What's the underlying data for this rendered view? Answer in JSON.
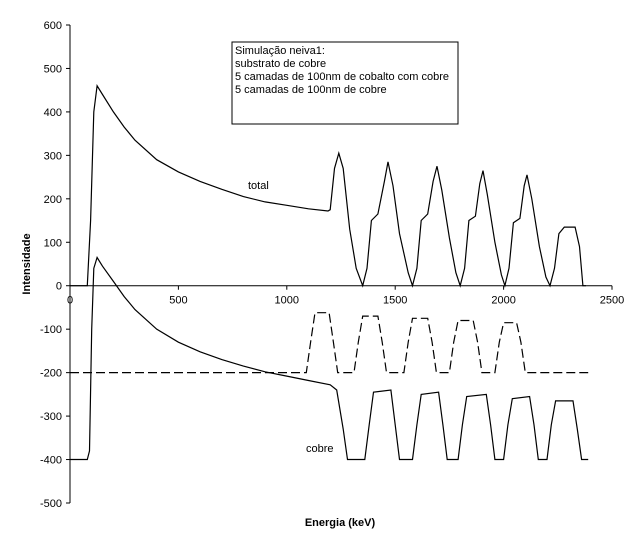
{
  "chart_data": {
    "type": "line",
    "x_label": "Energia (keV)",
    "y_label": "Intensidade",
    "xlim": [
      0,
      2500
    ],
    "xticks": [
      0,
      500,
      1000,
      1500,
      2000,
      2500
    ],
    "ylim": [
      -500,
      600
    ],
    "yticks": [
      -500,
      -400,
      -300,
      -200,
      -100,
      0,
      100,
      200,
      300,
      400,
      500,
      600
    ],
    "grid": false,
    "note_lines": [
      "Simulação neiva1:",
      "substrato de cobre",
      "5 camadas de 100nm de cobalto com cobre",
      "5 camadas de 100nm de cobre"
    ],
    "series": [
      {
        "name": "total",
        "color": "#000000",
        "dashed": false,
        "x": [
          0,
          70,
          80,
          95,
          110,
          125,
          150,
          200,
          250,
          300,
          400,
          500,
          600,
          700,
          800,
          900,
          1000,
          1100,
          1190,
          1200,
          1220,
          1240,
          1260,
          1290,
          1320,
          1350,
          1370,
          1390,
          1420,
          1450,
          1467,
          1490,
          1520,
          1560,
          1580,
          1600,
          1620,
          1650,
          1675,
          1693,
          1715,
          1750,
          1780,
          1800,
          1820,
          1840,
          1870,
          1890,
          1905,
          1925,
          1960,
          1990,
          2006,
          2025,
          2045,
          2075,
          2095,
          2108,
          2130,
          2165,
          2195,
          2214,
          2235,
          2255,
          2280,
          2330,
          2350,
          2366,
          2380
        ],
        "values": [
          0,
          0,
          0,
          150,
          400,
          460,
          440,
          400,
          365,
          335,
          290,
          262,
          240,
          222,
          205,
          193,
          185,
          177,
          172,
          175,
          270,
          305,
          270,
          130,
          40,
          0,
          40,
          150,
          165,
          240,
          285,
          230,
          120,
          30,
          0,
          40,
          150,
          165,
          240,
          275,
          220,
          110,
          30,
          0,
          40,
          150,
          160,
          235,
          265,
          210,
          100,
          25,
          0,
          40,
          145,
          155,
          230,
          255,
          200,
          90,
          20,
          0,
          40,
          120,
          135,
          135,
          90,
          0,
          0
        ]
      },
      {
        "name": "cobre",
        "color": "#000000",
        "dashed": false,
        "x": [
          0,
          80,
          90,
          100,
          110,
          125,
          150,
          200,
          250,
          300,
          400,
          500,
          600,
          700,
          800,
          900,
          1000,
          1100,
          1200,
          1230,
          1260,
          1280,
          1360,
          1380,
          1400,
          1480,
          1500,
          1520,
          1580,
          1600,
          1620,
          1700,
          1720,
          1740,
          1790,
          1810,
          1830,
          1920,
          1940,
          1960,
          2000,
          2020,
          2040,
          2120,
          2140,
          2160,
          2200,
          2220,
          2240,
          2320,
          2340,
          2360,
          2390
        ],
        "values": [
          -400,
          -400,
          -380,
          -100,
          40,
          65,
          45,
          10,
          -25,
          -55,
          -100,
          -130,
          -152,
          -170,
          -185,
          -198,
          -208,
          -218,
          -228,
          -240,
          -330,
          -400,
          -400,
          -320,
          -245,
          -240,
          -320,
          -400,
          -400,
          -320,
          -250,
          -245,
          -320,
          -400,
          -400,
          -320,
          -255,
          -250,
          -320,
          -400,
          -400,
          -320,
          -260,
          -255,
          -320,
          -400,
          -400,
          -320,
          -265,
          -265,
          -330,
          -400,
          -400
        ]
      },
      {
        "name": null,
        "color": "#000000",
        "dashed": true,
        "x": [
          0,
          1090,
          1110,
          1130,
          1195,
          1215,
          1235,
          1310,
          1330,
          1350,
          1420,
          1440,
          1460,
          1540,
          1560,
          1580,
          1650,
          1670,
          1690,
          1750,
          1770,
          1790,
          1860,
          1880,
          1900,
          1960,
          1980,
          2000,
          2060,
          2080,
          2100,
          2390
        ],
        "values": [
          -200,
          -200,
          -130,
          -62,
          -62,
          -130,
          -200,
          -200,
          -130,
          -70,
          -70,
          -130,
          -200,
          -200,
          -130,
          -75,
          -75,
          -130,
          -200,
          -200,
          -130,
          -80,
          -80,
          -130,
          -200,
          -200,
          -130,
          -85,
          -85,
          -130,
          -200,
          -200
        ]
      }
    ]
  }
}
